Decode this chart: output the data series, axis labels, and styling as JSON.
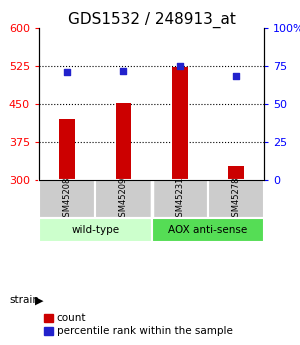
{
  "title": "GDS1532 / 248913_at",
  "samples": [
    "GSM45208",
    "GSM45209",
    "GSM45231",
    "GSM45278"
  ],
  "counts": [
    420,
    451,
    522,
    328
  ],
  "percentiles": [
    71,
    71.5,
    75,
    68
  ],
  "ylim_left": [
    300,
    600
  ],
  "ylim_right": [
    0,
    100
  ],
  "yticks_left": [
    300,
    375,
    450,
    525,
    600
  ],
  "yticks_right": [
    0,
    25,
    50,
    75,
    100
  ],
  "bar_color": "#cc0000",
  "dot_color": "#2222cc",
  "wt_color": "#ccffcc",
  "aox_color": "#55dd55",
  "label_area_color": "#cccccc",
  "title_fontsize": 11,
  "tick_fontsize": 8,
  "legend_fontsize": 7.5,
  "legend_items": [
    "count",
    "percentile rank within the sample"
  ]
}
